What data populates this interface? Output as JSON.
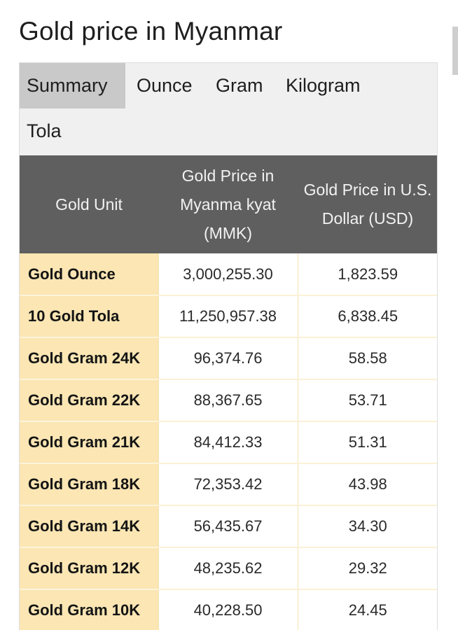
{
  "page": {
    "title": "Gold price in Myanmar"
  },
  "tabs": [
    {
      "label": "Summary",
      "active": true
    },
    {
      "label": "Ounce",
      "active": false
    },
    {
      "label": "Gram",
      "active": false
    },
    {
      "label": "Kilogram",
      "active": false
    },
    {
      "label": "Tola",
      "active": false
    }
  ],
  "table": {
    "headers": [
      "Gold Unit",
      "Gold Price in Myanma kyat (MMK)",
      "Gold Price in U.S. Dollar (USD)"
    ],
    "rows": [
      {
        "unit": "Gold Ounce",
        "mmk": "3,000,255.30",
        "usd": "1,823.59"
      },
      {
        "unit": "10 Gold Tola",
        "mmk": "11,250,957.38",
        "usd": "6,838.45"
      },
      {
        "unit": "Gold Gram 24K",
        "mmk": "96,374.76",
        "usd": "58.58"
      },
      {
        "unit": "Gold Gram 22K",
        "mmk": "88,367.65",
        "usd": "53.71"
      },
      {
        "unit": "Gold Gram 21K",
        "mmk": "84,412.33",
        "usd": "51.31"
      },
      {
        "unit": "Gold Gram 18K",
        "mmk": "72,353.42",
        "usd": "43.98"
      },
      {
        "unit": "Gold Gram 14K",
        "mmk": "56,435.67",
        "usd": "34.30"
      },
      {
        "unit": "Gold Gram 12K",
        "mmk": "48,235.62",
        "usd": "29.32"
      },
      {
        "unit": "Gold Gram 10K",
        "mmk": "40,228.50",
        "usd": "24.45"
      }
    ]
  },
  "colors": {
    "header_bg": "#5f5f5f",
    "unit_cell_bg": "#fbe6b4",
    "active_tab_bg": "#c9c9c9",
    "tab_bar_bg": "#f0f0f0"
  }
}
